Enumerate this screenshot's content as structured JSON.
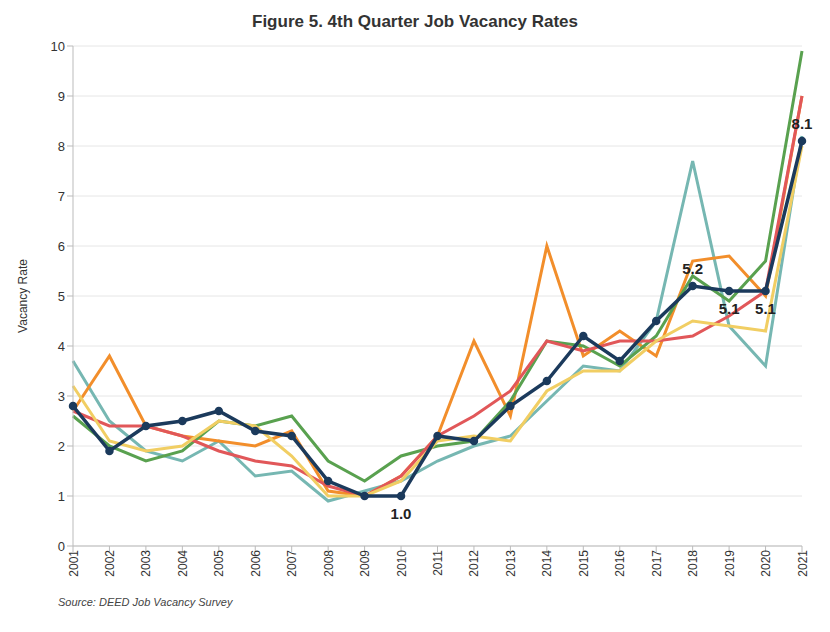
{
  "chart_data": {
    "type": "line",
    "title": "Figure 5. 4th Quarter Job Vacancy Rates",
    "y_label": "Vacancy Rate",
    "source": "Source: DEED Job Vacancy Survey",
    "categories": [
      "2001",
      "2002",
      "2003",
      "2004",
      "2005",
      "2006",
      "2007",
      "2008",
      "2009",
      "2010",
      "2011",
      "2012",
      "2013",
      "2014",
      "2015",
      "2016",
      "2017",
      "2018",
      "2019",
      "2020",
      "2021"
    ],
    "series": [
      {
        "color": "#76b7b2",
        "marker": "none",
        "values": [
          3.7,
          2.5,
          1.9,
          1.7,
          2.1,
          1.4,
          1.5,
          0.9,
          1.1,
          1.3,
          1.7,
          2.0,
          2.2,
          2.9,
          3.6,
          3.5,
          4.5,
          7.7,
          4.4,
          3.6,
          8.2
        ]
      },
      {
        "color": "#f28e2b",
        "marker": "none",
        "values": [
          2.7,
          3.8,
          2.4,
          2.2,
          2.1,
          2.0,
          2.3,
          1.1,
          1.0,
          1.4,
          2.2,
          4.1,
          2.6,
          6.0,
          3.8,
          4.3,
          3.8,
          5.7,
          5.8,
          5.0,
          9.0
        ]
      },
      {
        "color": "#59a14f",
        "marker": "none",
        "values": [
          2.6,
          2.0,
          1.7,
          1.9,
          2.5,
          2.4,
          2.6,
          1.7,
          1.3,
          1.8,
          2.0,
          2.1,
          2.9,
          4.1,
          4.0,
          3.6,
          4.2,
          5.4,
          4.9,
          5.7,
          9.9
        ]
      },
      {
        "color": "#e15759",
        "marker": "none",
        "values": [
          2.7,
          2.4,
          2.4,
          2.2,
          1.9,
          1.7,
          1.6,
          1.2,
          1.0,
          1.4,
          2.2,
          2.6,
          3.1,
          4.1,
          3.9,
          4.1,
          4.1,
          4.2,
          4.6,
          5.1,
          9.0
        ]
      },
      {
        "color": "#f1ce63",
        "marker": "none",
        "values": [
          3.2,
          2.1,
          1.9,
          2.0,
          2.5,
          2.4,
          1.8,
          1.0,
          1.0,
          1.3,
          2.1,
          2.2,
          2.1,
          3.1,
          3.5,
          3.5,
          4.1,
          4.5,
          4.4,
          4.3,
          8.0
        ]
      },
      {
        "color": "#1b3a5c",
        "marker": "circle",
        "values": [
          2.8,
          1.9,
          2.4,
          2.5,
          2.7,
          2.3,
          2.2,
          1.3,
          1.0,
          1.0,
          2.2,
          2.1,
          2.8,
          3.3,
          4.2,
          3.7,
          4.5,
          5.2,
          5.1,
          5.1,
          8.1
        ]
      }
    ],
    "annotations": [
      {
        "x": "2010",
        "y": 1.0,
        "text": "1.0"
      },
      {
        "x": "2018",
        "y": 5.2,
        "text": "5.2"
      },
      {
        "x": "2019",
        "y": 5.1,
        "text": "5.1"
      },
      {
        "x": "2020",
        "y": 5.1,
        "text": "5.1"
      },
      {
        "x": "2021",
        "y": 8.1,
        "text": "8.1"
      }
    ],
    "ylim": [
      0,
      10
    ],
    "yticks": [
      0,
      1,
      2,
      3,
      4,
      5,
      6,
      7,
      8,
      9,
      10
    ],
    "grid": true
  }
}
